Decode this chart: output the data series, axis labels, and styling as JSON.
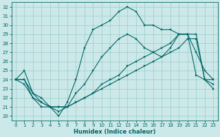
{
  "xlabel": "Humidex (Indice chaleur)",
  "ylabel": "",
  "xlim": [
    -0.5,
    23.5
  ],
  "ylim": [
    19.5,
    32.5
  ],
  "xticks": [
    0,
    1,
    2,
    3,
    4,
    5,
    6,
    7,
    8,
    9,
    10,
    11,
    12,
    13,
    14,
    15,
    16,
    17,
    18,
    19,
    20,
    21,
    22,
    23
  ],
  "yticks": [
    20,
    21,
    22,
    23,
    24,
    25,
    26,
    27,
    28,
    29,
    30,
    31,
    32
  ],
  "bg_color": "#cce8e8",
  "line_color": "#006666",
  "grid_color": "#99cccc",
  "line1_y": [
    24.0,
    25.0,
    22.5,
    22.0,
    21.0,
    20.0,
    21.5,
    24.0,
    27.5,
    29.5,
    30.0,
    30.5,
    31.5,
    32.0,
    31.5,
    30.0,
    30.0,
    29.5,
    29.5,
    29.0,
    29.0,
    27.0,
    25.0,
    24.0
  ],
  "line2_y": [
    24.0,
    23.5,
    22.0,
    21.0,
    21.0,
    21.0,
    21.0,
    21.5,
    22.0,
    22.5,
    23.0,
    23.5,
    24.0,
    24.5,
    25.0,
    25.5,
    26.0,
    26.5,
    27.0,
    27.5,
    28.5,
    28.5,
    24.0,
    23.5
  ],
  "line3_y": [
    24.0,
    24.0,
    22.5,
    21.5,
    21.0,
    20.5,
    21.0,
    22.5,
    23.5,
    25.0,
    26.5,
    27.5,
    28.5,
    29.0,
    28.5,
    27.5,
    27.0,
    26.5,
    27.5,
    29.0,
    29.0,
    24.5,
    24.0,
    23.0
  ],
  "line4_y": [
    24.0,
    24.0,
    22.0,
    21.5,
    21.0,
    21.0,
    21.0,
    21.5,
    22.0,
    22.5,
    23.5,
    24.0,
    24.5,
    25.5,
    26.0,
    26.5,
    27.0,
    27.5,
    28.0,
    29.0,
    29.0,
    29.0,
    24.0,
    24.0
  ]
}
